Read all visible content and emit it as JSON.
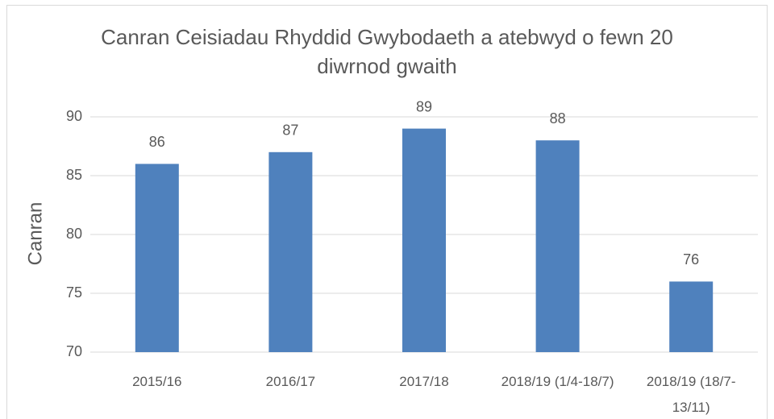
{
  "chart_data": {
    "type": "bar",
    "title": "Canran Ceisiadau Rhyddid Gwybodaeth a atebwyd o fewn 20 diwrnod gwaith",
    "y_label": "Canran",
    "categories": [
      "2015/16",
      "2016/17",
      "2017/18",
      "2018/19 (1/4-18/7)",
      "2018/19 (18/7-13/11)"
    ],
    "values": [
      86,
      87,
      89,
      88,
      76
    ],
    "color": "#4f81bd",
    "ylim": [
      70,
      90
    ],
    "yticks": [
      70,
      75,
      80,
      85,
      90
    ],
    "grid": true
  }
}
